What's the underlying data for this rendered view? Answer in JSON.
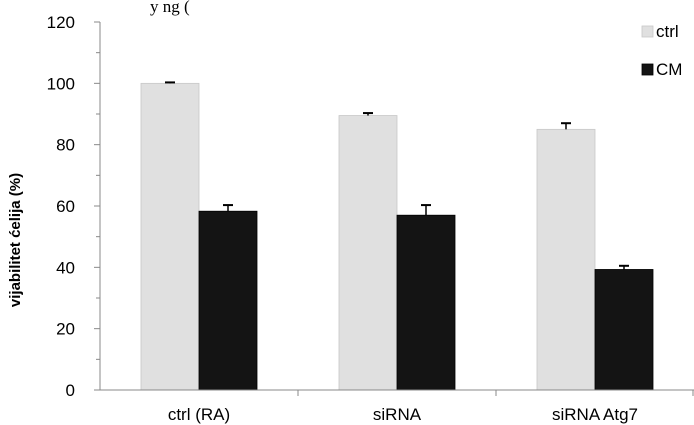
{
  "header_fragment": "y ng (",
  "chart_data": {
    "type": "bar",
    "categories": [
      "ctrl (RA)",
      "siRNA",
      "siRNA Atg7"
    ],
    "series": [
      {
        "name": "ctrl",
        "values": [
          100,
          89.5,
          85
        ],
        "errors": [
          0.3,
          0.8,
          2.0
        ],
        "color": "#e0e0e0"
      },
      {
        "name": "CM",
        "values": [
          58.3,
          57,
          39.3
        ],
        "errors": [
          2.0,
          3.3,
          1.2
        ],
        "color": "#141414"
      }
    ],
    "ylabel": "vijabilitet ćelija (%)",
    "xlabel": "",
    "ylim": [
      0,
      120
    ],
    "yticks": [
      "0",
      "20",
      "40",
      "60",
      "80",
      "100",
      "120"
    ],
    "grid": false,
    "legend_position": "top-right"
  }
}
